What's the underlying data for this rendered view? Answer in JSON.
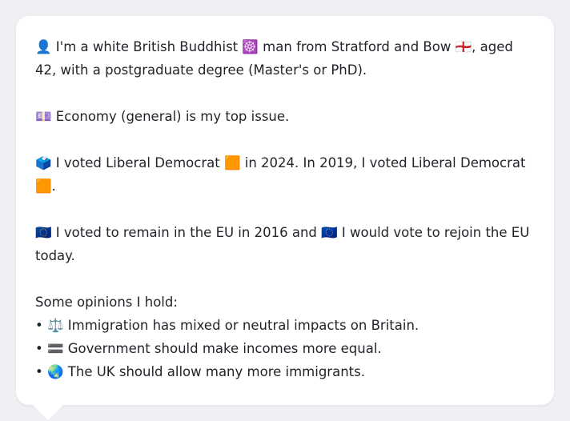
{
  "profile": {
    "line1_emoji": "👤",
    "line1_text_a": " I'm a white British Buddhist ",
    "line1_emoji2": "☸️",
    "line1_text_b": " man from Stratford and Bow ",
    "line1_emoji3": "🏴󠁧󠁢󠁥󠁮󠁧󠁿",
    "line1_text_c": ", aged 42, with a postgraduate degree (Master's or PhD).",
    "issue_emoji": "💷",
    "issue_text": " Economy (general) is my top issue.",
    "vote_emoji": "🗳️",
    "vote_text_a": " I voted Liberal Democrat ",
    "vote_party_emoji": "🟧",
    "vote_text_b": " in 2024. In 2019, I voted Liberal Democrat ",
    "vote_party_emoji2": "🟧",
    "vote_text_c": ".",
    "eu_emoji": "🇪🇺",
    "eu_text_a": " I voted to remain in the EU in 2016 and ",
    "eu_emoji2": "🇪🇺",
    "eu_text_b": " I would vote to rejoin the EU today.",
    "opinions_heading": "Some opinions I hold:",
    "opinions": [
      {
        "bullet": "• ",
        "emoji": "⚖️",
        "text": " Immigration has mixed or neutral impacts on Britain."
      },
      {
        "bullet": "• ",
        "emoji": "🟰",
        "text": " Government should make incomes more equal."
      },
      {
        "bullet": "• ",
        "emoji": "🌏",
        "text": " The UK should allow many more immigrants."
      }
    ]
  }
}
